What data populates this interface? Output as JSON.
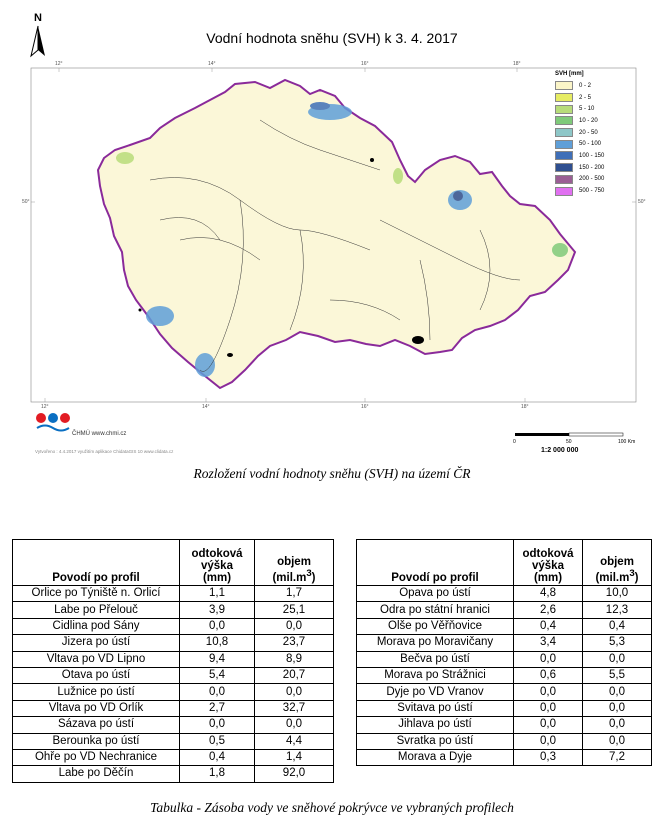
{
  "map": {
    "title": "Vodní hodnota sněhu (SVH) k 3. 4. 2017",
    "north_label": "N",
    "legend_title": "SVH [mm]",
    "legend": [
      {
        "label": "0 - 2",
        "color": "#fbf5c8"
      },
      {
        "label": "2 - 5",
        "color": "#e6ec63"
      },
      {
        "label": "5 - 10",
        "color": "#b7dc7a"
      },
      {
        "label": "10 - 20",
        "color": "#7fca7a"
      },
      {
        "label": "20 - 50",
        "color": "#8ec7c8"
      },
      {
        "label": "50 - 100",
        "color": "#5f9fd8"
      },
      {
        "label": "100 - 150",
        "color": "#3f6fb8"
      },
      {
        "label": "150 - 200",
        "color": "#2f4f90"
      },
      {
        "label": "200 - 500",
        "color": "#9a5e94"
      },
      {
        "label": "500 - 750",
        "color": "#e070f0"
      }
    ],
    "ticks_top": [
      "12°",
      "14°",
      "16°",
      "18°"
    ],
    "ticks_bottom": [
      "12°",
      "14°",
      "16°",
      "18°"
    ],
    "ticks_left": [
      "50°"
    ],
    "ticks_right": [
      "50°"
    ],
    "logo_text": "ČHMÚ www.chmi.cz",
    "credit": "Vytvořeno : 4.4.2017 využitím aplikace ChidataGIS 10 www.clidata.cz",
    "scale_labels": [
      "0",
      "50",
      "100 Km"
    ],
    "scale_ratio": "1:2 000 000",
    "caption": "Rozložení vodní hodnoty sněhu (SVH) na území ČR",
    "border_color": "#8a2a9a",
    "land_color": "#fbf7d8"
  },
  "table": {
    "headers": {
      "profile": "Povodí po profil",
      "runoff": [
        "odtoková",
        "výška",
        "(mm)"
      ],
      "volume": [
        "objem",
        "(mil.m",
        "3",
        ")"
      ]
    },
    "left": [
      {
        "name": "Orlice po Týniště n. Orlicí",
        "runoff": "1,1",
        "volume": "1,7"
      },
      {
        "name": "Labe po Přelouč",
        "runoff": "3,9",
        "volume": "25,1"
      },
      {
        "name": "Cidlina pod Sány",
        "runoff": "0,0",
        "volume": "0,0"
      },
      {
        "name": "Jizera po ústí",
        "runoff": "10,8",
        "volume": "23,7"
      },
      {
        "name": "Vltava po VD Lipno",
        "runoff": "9,4",
        "volume": "8,9"
      },
      {
        "name": "Otava po ústí",
        "runoff": "5,4",
        "volume": "20,7"
      },
      {
        "name": "Lužnice po ústí",
        "runoff": "0,0",
        "volume": "0,0"
      },
      {
        "name": "Vltava po VD Orlík",
        "runoff": "2,7",
        "volume": "32,7"
      },
      {
        "name": "Sázava po ústí",
        "runoff": "0,0",
        "volume": "0,0"
      },
      {
        "name": "Berounka po ústí",
        "runoff": "0,5",
        "volume": "4,4"
      },
      {
        "name": "Ohře po VD Nechranice",
        "runoff": "0,4",
        "volume": "1,4"
      },
      {
        "name": "Labe po Děčín",
        "runoff": "1,8",
        "volume": "92,0"
      }
    ],
    "right": [
      {
        "name": "Opava po ústí",
        "runoff": "4,8",
        "volume": "10,0"
      },
      {
        "name": "Odra po státní hranici",
        "runoff": "2,6",
        "volume": "12,3"
      },
      {
        "name": "Olše po Věřňovice",
        "runoff": "0,4",
        "volume": "0,4"
      },
      {
        "name": "Morava po Moravičany",
        "runoff": "3,4",
        "volume": "5,3"
      },
      {
        "name": "Bečva po ústí",
        "runoff": "0,0",
        "volume": "0,0"
      },
      {
        "name": "Morava po Strážnici",
        "runoff": "0,6",
        "volume": "5,5"
      },
      {
        "name": "Dyje po VD Vranov",
        "runoff": "0,0",
        "volume": "0,0"
      },
      {
        "name": "Svitava po ústí",
        "runoff": "0,0",
        "volume": "0,0"
      },
      {
        "name": "Jihlava po ústí",
        "runoff": "0,0",
        "volume": "0,0"
      },
      {
        "name": "Svratka po ústí",
        "runoff": "0,0",
        "volume": "0,0"
      },
      {
        "name": "Morava a Dyje",
        "runoff": "0,3",
        "volume": "7,2"
      }
    ],
    "caption": "Tabulka - Zásoba vody ve sněhové pokrývce ve vybraných profilech"
  }
}
